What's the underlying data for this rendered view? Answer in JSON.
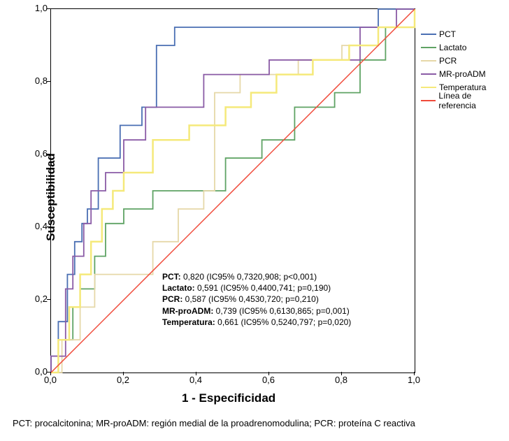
{
  "axes": {
    "x_label": "1 - Especificidad",
    "y_label": "Susceptibilidad",
    "xlim": [
      0.0,
      1.0
    ],
    "ylim": [
      0.0,
      1.0
    ],
    "ticks": [
      "0,0",
      "0,2",
      "0,4",
      "0,6",
      "0,8",
      "1,0"
    ],
    "tick_fontsize": 13,
    "label_fontsize": 17,
    "background_color": "#ffffff",
    "border_color": "#000000"
  },
  "series": [
    {
      "name": "PCT",
      "label": "PCT",
      "color": "#4a6fb3",
      "width": 1.8,
      "points": [
        [
          0.0,
          0.0
        ],
        [
          0.0,
          0.045
        ],
        [
          0.02,
          0.045
        ],
        [
          0.02,
          0.14
        ],
        [
          0.045,
          0.14
        ],
        [
          0.045,
          0.27
        ],
        [
          0.065,
          0.27
        ],
        [
          0.065,
          0.36
        ],
        [
          0.085,
          0.36
        ],
        [
          0.085,
          0.41
        ],
        [
          0.1,
          0.41
        ],
        [
          0.1,
          0.45
        ],
        [
          0.13,
          0.45
        ],
        [
          0.13,
          0.59
        ],
        [
          0.19,
          0.59
        ],
        [
          0.19,
          0.68
        ],
        [
          0.25,
          0.68
        ],
        [
          0.25,
          0.73
        ],
        [
          0.29,
          0.73
        ],
        [
          0.29,
          0.9
        ],
        [
          0.34,
          0.9
        ],
        [
          0.34,
          0.95
        ],
        [
          0.42,
          0.95
        ],
        [
          0.42,
          0.95
        ],
        [
          0.9,
          0.95
        ],
        [
          0.9,
          1.0
        ],
        [
          1.0,
          1.0
        ]
      ]
    },
    {
      "name": "Lactato",
      "label": "Lactato",
      "color": "#5fa364",
      "width": 1.8,
      "points": [
        [
          0.0,
          0.0
        ],
        [
          0.02,
          0.0
        ],
        [
          0.02,
          0.09
        ],
        [
          0.06,
          0.09
        ],
        [
          0.06,
          0.18
        ],
        [
          0.08,
          0.18
        ],
        [
          0.08,
          0.23
        ],
        [
          0.12,
          0.23
        ],
        [
          0.12,
          0.32
        ],
        [
          0.15,
          0.32
        ],
        [
          0.15,
          0.41
        ],
        [
          0.2,
          0.41
        ],
        [
          0.2,
          0.45
        ],
        [
          0.28,
          0.45
        ],
        [
          0.28,
          0.5
        ],
        [
          0.36,
          0.5
        ],
        [
          0.36,
          0.5
        ],
        [
          0.48,
          0.5
        ],
        [
          0.48,
          0.59
        ],
        [
          0.58,
          0.59
        ],
        [
          0.58,
          0.64
        ],
        [
          0.67,
          0.64
        ],
        [
          0.67,
          0.73
        ],
        [
          0.78,
          0.73
        ],
        [
          0.78,
          0.77
        ],
        [
          0.85,
          0.77
        ],
        [
          0.85,
          0.86
        ],
        [
          0.92,
          0.86
        ],
        [
          0.92,
          0.95
        ],
        [
          1.0,
          0.95
        ]
      ]
    },
    {
      "name": "PCR",
      "label": "PCR",
      "color": "#e6d8a8",
      "width": 1.8,
      "points": [
        [
          0.0,
          0.0
        ],
        [
          0.03,
          0.0
        ],
        [
          0.03,
          0.09
        ],
        [
          0.08,
          0.09
        ],
        [
          0.08,
          0.18
        ],
        [
          0.12,
          0.18
        ],
        [
          0.12,
          0.27
        ],
        [
          0.2,
          0.27
        ],
        [
          0.2,
          0.27
        ],
        [
          0.28,
          0.27
        ],
        [
          0.28,
          0.36
        ],
        [
          0.35,
          0.36
        ],
        [
          0.35,
          0.45
        ],
        [
          0.42,
          0.45
        ],
        [
          0.42,
          0.5
        ],
        [
          0.45,
          0.5
        ],
        [
          0.45,
          0.77
        ],
        [
          0.52,
          0.77
        ],
        [
          0.52,
          0.82
        ],
        [
          0.58,
          0.82
        ],
        [
          0.58,
          0.82
        ],
        [
          0.68,
          0.82
        ],
        [
          0.68,
          0.86
        ],
        [
          0.8,
          0.86
        ],
        [
          0.8,
          0.9
        ],
        [
          0.9,
          0.9
        ],
        [
          0.9,
          0.95
        ],
        [
          1.0,
          0.95
        ],
        [
          1.0,
          1.0
        ]
      ]
    },
    {
      "name": "MR-proADM",
      "label": "MR-proADM",
      "color": "#8a5ba6",
      "width": 1.8,
      "points": [
        [
          0.0,
          0.0
        ],
        [
          0.0,
          0.045
        ],
        [
          0.04,
          0.045
        ],
        [
          0.04,
          0.23
        ],
        [
          0.06,
          0.23
        ],
        [
          0.06,
          0.32
        ],
        [
          0.09,
          0.32
        ],
        [
          0.09,
          0.41
        ],
        [
          0.11,
          0.41
        ],
        [
          0.11,
          0.5
        ],
        [
          0.15,
          0.5
        ],
        [
          0.15,
          0.55
        ],
        [
          0.2,
          0.55
        ],
        [
          0.2,
          0.64
        ],
        [
          0.26,
          0.64
        ],
        [
          0.26,
          0.73
        ],
        [
          0.32,
          0.73
        ],
        [
          0.32,
          0.73
        ],
        [
          0.42,
          0.73
        ],
        [
          0.42,
          0.82
        ],
        [
          0.5,
          0.82
        ],
        [
          0.5,
          0.82
        ],
        [
          0.6,
          0.82
        ],
        [
          0.6,
          0.86
        ],
        [
          0.72,
          0.86
        ],
        [
          0.72,
          0.86
        ],
        [
          0.85,
          0.86
        ],
        [
          0.85,
          0.95
        ],
        [
          0.95,
          0.95
        ],
        [
          0.95,
          1.0
        ],
        [
          1.0,
          1.0
        ]
      ]
    },
    {
      "name": "Temperatura",
      "label": "Temperatura",
      "color": "#f5e97a",
      "width": 2.5,
      "points": [
        [
          0.0,
          0.0
        ],
        [
          0.02,
          0.0
        ],
        [
          0.02,
          0.09
        ],
        [
          0.05,
          0.09
        ],
        [
          0.05,
          0.18
        ],
        [
          0.08,
          0.18
        ],
        [
          0.08,
          0.27
        ],
        [
          0.11,
          0.27
        ],
        [
          0.11,
          0.36
        ],
        [
          0.14,
          0.36
        ],
        [
          0.14,
          0.45
        ],
        [
          0.17,
          0.45
        ],
        [
          0.17,
          0.5
        ],
        [
          0.2,
          0.5
        ],
        [
          0.2,
          0.55
        ],
        [
          0.28,
          0.55
        ],
        [
          0.28,
          0.64
        ],
        [
          0.38,
          0.64
        ],
        [
          0.38,
          0.68
        ],
        [
          0.48,
          0.68
        ],
        [
          0.48,
          0.73
        ],
        [
          0.55,
          0.73
        ],
        [
          0.55,
          0.77
        ],
        [
          0.62,
          0.77
        ],
        [
          0.62,
          0.82
        ],
        [
          0.72,
          0.82
        ],
        [
          0.72,
          0.86
        ],
        [
          0.82,
          0.86
        ],
        [
          0.82,
          0.9
        ],
        [
          0.9,
          0.9
        ],
        [
          0.9,
          0.95
        ],
        [
          1.0,
          0.95
        ],
        [
          1.0,
          1.0
        ]
      ]
    },
    {
      "name": "Reference",
      "label": "Línea de referencia",
      "color": "#f04a3a",
      "width": 1.5,
      "points": [
        [
          0.0,
          0.0
        ],
        [
          1.0,
          1.0
        ]
      ]
    }
  ],
  "stats": [
    {
      "label": "PCT:",
      "value": "0,820 (IC95% 0,7320,908; p<0,001)"
    },
    {
      "label": "Lactato:",
      "value": "0,591 (IC95% 0,4400,741; p=0,190)"
    },
    {
      "label": "PCR:",
      "value": "0,587 (IC95% 0,4530,720; p=0,210)"
    },
    {
      "label": "MR-proADM:",
      "value": "0,739 (IC95% 0,6130,865; p=0,001)"
    },
    {
      "label": "Temperatura:",
      "value": "0,661 (IC95% 0,5240,797; p=0,020)"
    }
  ],
  "footnote": "PCT: procalcitonina; MR-proADM: región medial de la proadrenomodulina; PCR: proteína C reactiva"
}
